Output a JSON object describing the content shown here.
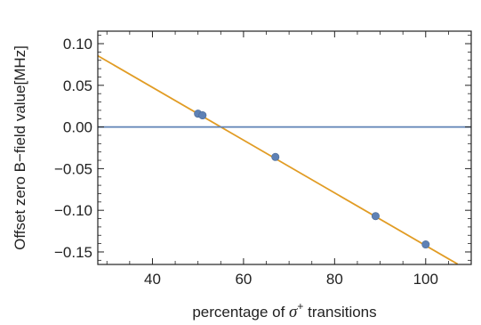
{
  "chart_data": {
    "type": "scatter",
    "title": "",
    "xlabel": {
      "prefix": "percentage of ",
      "symbol": "σ",
      "superscript": "+",
      "suffix": " transitions"
    },
    "ylabel": "Offset zero B−field value[MHz]",
    "xlim": [
      28,
      110
    ],
    "ylim": [
      -0.165,
      0.115
    ],
    "x_ticks": [
      40,
      60,
      80,
      100
    ],
    "x_tick_labels": [
      "40",
      "60",
      "80",
      "100"
    ],
    "y_ticks": [
      0.1,
      0.05,
      0.0,
      -0.05,
      -0.1,
      -0.15
    ],
    "y_tick_labels": [
      "0.10",
      "0.05",
      "0.00",
      "−0.05",
      "−0.10",
      "−0.15"
    ],
    "grid": false,
    "series": [
      {
        "kind": "points",
        "color": "#5e81b5",
        "x": [
          50,
          51,
          67,
          89,
          100
        ],
        "y": [
          0.016,
          0.014,
          -0.036,
          -0.107,
          -0.141
        ]
      },
      {
        "kind": "fit-line",
        "color": "#e19c24",
        "x": [
          28,
          107
        ],
        "y": [
          0.0855,
          -0.1645
        ]
      },
      {
        "kind": "zero-line",
        "color": "#5e81b5",
        "x": [
          28,
          110
        ],
        "y": [
          0,
          0
        ]
      }
    ]
  }
}
